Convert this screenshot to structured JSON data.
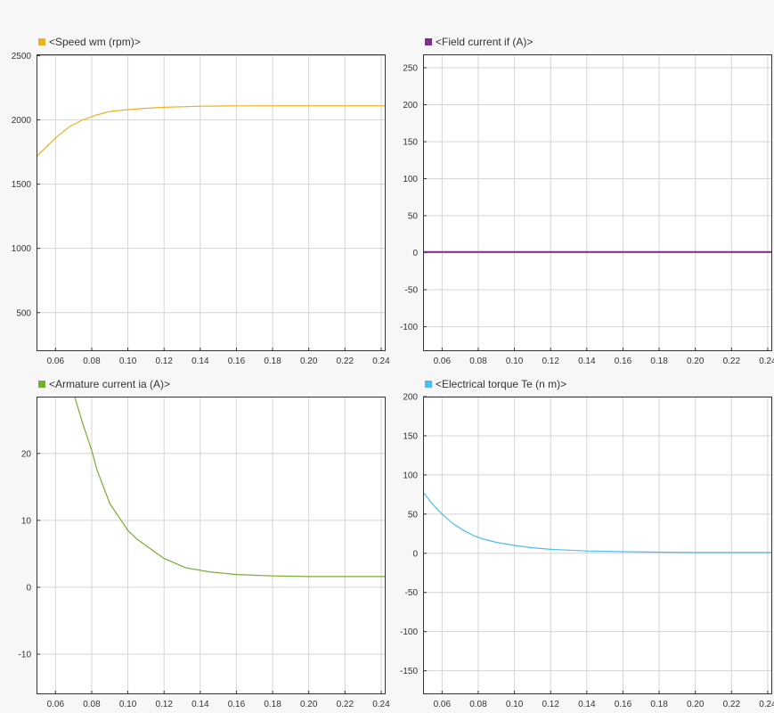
{
  "chart_data": [
    {
      "type": "line",
      "legend_label": "<Speed wm (rpm)>",
      "color": "#EDB120",
      "x_ticks": [
        0.06,
        0.08,
        0.1,
        0.12,
        0.14,
        0.16,
        0.18,
        0.2,
        0.22,
        0.24
      ],
      "x_tick_labels": [
        "0.06",
        "0.08",
        "0.10",
        "0.12",
        "0.14",
        "0.16",
        "0.18",
        "0.20",
        "0.22",
        "0.24"
      ],
      "y_ticks": [
        500,
        1000,
        1500,
        2000,
        2500
      ],
      "y_tick_labels": [
        "500",
        "1000",
        "1500",
        "2000",
        "2500"
      ],
      "xlim": [
        0.0495,
        0.2425
      ],
      "ylim": [
        200,
        2510
      ],
      "grid": true,
      "x": [
        0.05,
        0.052,
        0.06,
        0.068,
        0.075,
        0.083,
        0.09,
        0.1,
        0.11,
        0.12,
        0.13,
        0.14,
        0.15,
        0.16,
        0.18,
        0.2,
        0.22,
        0.2425
      ],
      "y": [
        1720,
        1750,
        1860,
        1950,
        2000,
        2040,
        2065,
        2080,
        2090,
        2098,
        2102,
        2106,
        2108,
        2109,
        2110,
        2110,
        2110,
        2110
      ]
    },
    {
      "type": "line",
      "legend_label": "<Field current if (A)>",
      "color": "#7E2F8E",
      "x_ticks": [
        0.06,
        0.08,
        0.1,
        0.12,
        0.14,
        0.16,
        0.18,
        0.2,
        0.22,
        0.24
      ],
      "x_tick_labels": [
        "0.06",
        "0.08",
        "0.10",
        "0.12",
        "0.14",
        "0.16",
        "0.18",
        "0.20",
        "0.22",
        "0.24"
      ],
      "y_ticks": [
        -100,
        -50,
        0,
        50,
        100,
        150,
        200,
        250
      ],
      "y_tick_labels": [
        "-100",
        "-50",
        "0",
        "50",
        "100",
        "150",
        "200",
        "250"
      ],
      "xlim": [
        0.0495,
        0.2425
      ],
      "ylim": [
        -133,
        268
      ],
      "grid": true,
      "x": [
        0.0495,
        0.2425
      ],
      "y": [
        1,
        1
      ]
    },
    {
      "type": "line",
      "legend_label": "<Armature current ia (A)>",
      "color": "#77AC30",
      "x_ticks": [
        0.06,
        0.08,
        0.1,
        0.12,
        0.14,
        0.16,
        0.18,
        0.2,
        0.22,
        0.24
      ],
      "x_tick_labels": [
        "0.06",
        "0.08",
        "0.10",
        "0.12",
        "0.14",
        "0.16",
        "0.18",
        "0.20",
        "0.22",
        "0.24"
      ],
      "y_ticks": [
        -10,
        0,
        10,
        20
      ],
      "y_tick_labels": [
        "-10",
        "0",
        "10",
        "20"
      ],
      "xlim": [
        0.0495,
        0.2425
      ],
      "ylim": [
        -16,
        28.5
      ],
      "grid": true,
      "x": [
        0.07,
        0.075,
        0.08,
        0.083,
        0.09,
        0.1,
        0.105,
        0.12,
        0.132,
        0.145,
        0.16,
        0.18,
        0.2,
        0.22,
        0.2425
      ],
      "y": [
        29,
        24.5,
        20.5,
        17.5,
        12.5,
        8.5,
        7.2,
        4.3,
        2.9,
        2.3,
        1.9,
        1.7,
        1.6,
        1.6,
        1.6
      ]
    },
    {
      "type": "line",
      "legend_label": "<Electrical torque Te (n m)>",
      "color": "#4DBEEE",
      "x_ticks": [
        0.06,
        0.08,
        0.1,
        0.12,
        0.14,
        0.16,
        0.18,
        0.2,
        0.22,
        0.24
      ],
      "x_tick_labels": [
        "0.06",
        "0.08",
        "0.10",
        "0.12",
        "0.14",
        "0.16",
        "0.18",
        "0.20",
        "0.22",
        "0.24"
      ],
      "y_ticks": [
        -150,
        -100,
        -50,
        0,
        50,
        100,
        150,
        200
      ],
      "y_tick_labels": [
        "-150",
        "-100",
        "-50",
        "0",
        "50",
        "100",
        "150",
        "200"
      ],
      "xlim": [
        0.0495,
        0.2425
      ],
      "ylim": [
        -180,
        200
      ],
      "grid": true,
      "x": [
        0.0495,
        0.055,
        0.06,
        0.066,
        0.072,
        0.078,
        0.083,
        0.09,
        0.1,
        0.11,
        0.12,
        0.13,
        0.14,
        0.16,
        0.18,
        0.2,
        0.22,
        0.2425
      ],
      "y": [
        78,
        62,
        50,
        38,
        29,
        22,
        18,
        14,
        10,
        7,
        5,
        4,
        3,
        2,
        1.5,
        1,
        1,
        1
      ]
    }
  ]
}
